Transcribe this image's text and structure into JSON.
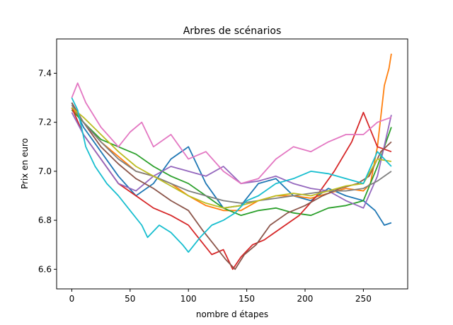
{
  "chart_data": {
    "type": "line",
    "title": "Arbres de scénarios",
    "xlabel": "nombre d étapes",
    "ylabel": "Prix en euro",
    "xlim": [
      -13,
      288
    ],
    "ylim": [
      6.52,
      7.54
    ],
    "xticks": [
      0,
      50,
      100,
      150,
      200,
      250
    ],
    "yticks": [
      6.6,
      6.8,
      7.0,
      7.2,
      7.4
    ],
    "xtick_labels": [
      "0",
      "50",
      "100",
      "150",
      "200",
      "250"
    ],
    "ytick_labels": [
      "6.6",
      "6.8",
      "7.0",
      "7.2",
      "7.4"
    ],
    "grid": false,
    "legend": "none",
    "series": [
      {
        "color": "#1f77b4",
        "x": [
          0,
          10,
          25,
          40,
          55,
          70,
          85,
          100,
          115,
          130,
          145,
          160,
          175,
          190,
          205,
          220,
          235,
          250,
          260,
          268,
          274
        ],
        "values": [
          7.28,
          7.18,
          7.08,
          6.98,
          6.9,
          6.95,
          7.05,
          7.1,
          6.95,
          6.85,
          6.86,
          6.95,
          6.97,
          6.9,
          6.88,
          6.93,
          6.9,
          6.88,
          6.84,
          6.78,
          6.79
        ]
      },
      {
        "color": "#ff7f0e",
        "x": [
          0,
          10,
          25,
          40,
          55,
          70,
          85,
          100,
          115,
          130,
          145,
          160,
          175,
          190,
          205,
          220,
          235,
          250,
          256,
          262,
          268,
          272,
          274
        ],
        "values": [
          7.26,
          7.2,
          7.12,
          7.06,
          7.0,
          6.98,
          6.95,
          6.9,
          6.86,
          6.84,
          6.84,
          6.88,
          6.9,
          6.9,
          6.89,
          6.91,
          6.93,
          6.92,
          6.95,
          7.1,
          7.35,
          7.42,
          7.48
        ]
      },
      {
        "color": "#2ca02c",
        "x": [
          0,
          10,
          25,
          40,
          55,
          70,
          85,
          100,
          115,
          130,
          145,
          160,
          175,
          190,
          205,
          220,
          235,
          250,
          262,
          274
        ],
        "values": [
          7.25,
          7.2,
          7.13,
          7.1,
          7.07,
          7.02,
          6.98,
          6.95,
          6.9,
          6.85,
          6.82,
          6.84,
          6.85,
          6.83,
          6.82,
          6.85,
          6.86,
          6.88,
          7.02,
          7.18
        ]
      },
      {
        "color": "#d62728",
        "x": [
          0,
          10,
          25,
          40,
          55,
          70,
          85,
          100,
          110,
          120,
          130,
          138,
          145,
          155,
          165,
          180,
          195,
          210,
          225,
          240,
          250,
          262,
          274
        ],
        "values": [
          7.26,
          7.15,
          7.05,
          6.95,
          6.9,
          6.85,
          6.82,
          6.78,
          6.72,
          6.66,
          6.68,
          6.6,
          6.65,
          6.7,
          6.72,
          6.77,
          6.82,
          6.9,
          7.0,
          7.12,
          7.24,
          7.1,
          7.08
        ]
      },
      {
        "color": "#9467bd",
        "x": [
          0,
          10,
          25,
          40,
          55,
          70,
          85,
          100,
          115,
          130,
          145,
          160,
          175,
          190,
          205,
          220,
          235,
          250,
          262,
          274
        ],
        "values": [
          7.24,
          7.15,
          7.05,
          6.95,
          6.92,
          6.98,
          7.02,
          7.0,
          6.98,
          7.02,
          6.95,
          6.96,
          6.98,
          6.95,
          6.93,
          6.92,
          6.88,
          6.85,
          6.98,
          7.23
        ]
      },
      {
        "color": "#8c564b",
        "x": [
          0,
          10,
          25,
          40,
          55,
          70,
          85,
          100,
          112,
          122,
          132,
          140,
          148,
          158,
          170,
          185,
          200,
          215,
          230,
          245,
          255,
          265,
          274
        ],
        "values": [
          7.28,
          7.2,
          7.1,
          7.03,
          6.97,
          6.93,
          6.88,
          6.84,
          6.76,
          6.7,
          6.64,
          6.6,
          6.66,
          6.7,
          6.78,
          6.83,
          6.86,
          6.9,
          6.93,
          6.95,
          6.98,
          7.08,
          7.12
        ]
      },
      {
        "color": "#e377c2",
        "x": [
          0,
          5,
          12,
          25,
          40,
          50,
          60,
          70,
          85,
          100,
          115,
          130,
          145,
          160,
          175,
          190,
          205,
          220,
          235,
          250,
          262,
          274
        ],
        "values": [
          7.3,
          7.36,
          7.28,
          7.18,
          7.1,
          7.16,
          7.2,
          7.1,
          7.15,
          7.05,
          7.08,
          7.0,
          6.95,
          6.97,
          7.05,
          7.1,
          7.08,
          7.12,
          7.15,
          7.15,
          7.2,
          7.22
        ]
      },
      {
        "color": "#7f7f7f",
        "x": [
          0,
          10,
          25,
          40,
          55,
          70,
          85,
          100,
          115,
          130,
          145,
          160,
          175,
          190,
          205,
          220,
          235,
          250,
          262,
          274
        ],
        "values": [
          7.27,
          7.2,
          7.12,
          7.05,
          7.0,
          6.98,
          6.95,
          6.92,
          6.9,
          6.88,
          6.87,
          6.88,
          6.89,
          6.9,
          6.91,
          6.92,
          6.92,
          6.93,
          6.96,
          7.0
        ]
      },
      {
        "color": "#bcbd22",
        "x": [
          0,
          10,
          25,
          40,
          55,
          70,
          85,
          100,
          115,
          130,
          145,
          160,
          175,
          190,
          205,
          220,
          235,
          250,
          262,
          274
        ],
        "values": [
          7.26,
          7.22,
          7.15,
          7.08,
          7.02,
          6.98,
          6.94,
          6.9,
          6.87,
          6.85,
          6.86,
          6.88,
          6.9,
          6.91,
          6.9,
          6.92,
          6.94,
          6.95,
          7.05,
          7.04
        ]
      },
      {
        "color": "#17becf",
        "x": [
          0,
          5,
          12,
          20,
          30,
          40,
          50,
          60,
          65,
          75,
          85,
          95,
          100,
          110,
          120,
          130,
          140,
          150,
          160,
          175,
          190,
          205,
          220,
          235,
          250,
          262,
          274
        ],
        "values": [
          7.3,
          7.25,
          7.1,
          7.02,
          6.95,
          6.9,
          6.84,
          6.78,
          6.73,
          6.78,
          6.75,
          6.7,
          6.67,
          6.73,
          6.78,
          6.8,
          6.83,
          6.88,
          6.9,
          6.95,
          6.97,
          7.0,
          6.99,
          6.97,
          6.95,
          7.08,
          7.02
        ]
      }
    ]
  }
}
